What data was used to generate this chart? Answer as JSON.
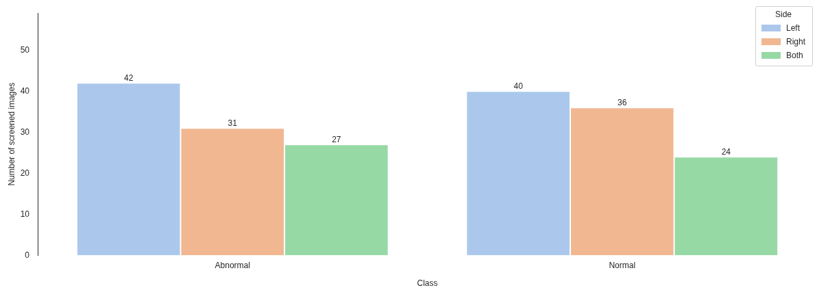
{
  "chart_data": {
    "type": "bar",
    "xlabel": "Class",
    "ylabel": "Number of screened images",
    "legend_title": "Side",
    "categories": [
      "Abnormal",
      "Normal"
    ],
    "series": [
      {
        "name": "Left",
        "color": "#abc8ec",
        "values": [
          42,
          40
        ]
      },
      {
        "name": "Right",
        "color": "#f0b791",
        "values": [
          31,
          36
        ]
      },
      {
        "name": "Both",
        "color": "#97d9a5",
        "values": [
          27,
          24
        ]
      }
    ],
    "ylim": [
      0,
      59
    ],
    "yticks": [
      0,
      10,
      20,
      30,
      40,
      50
    ],
    "grid": false,
    "legend": "top right",
    "data_labels": true
  }
}
